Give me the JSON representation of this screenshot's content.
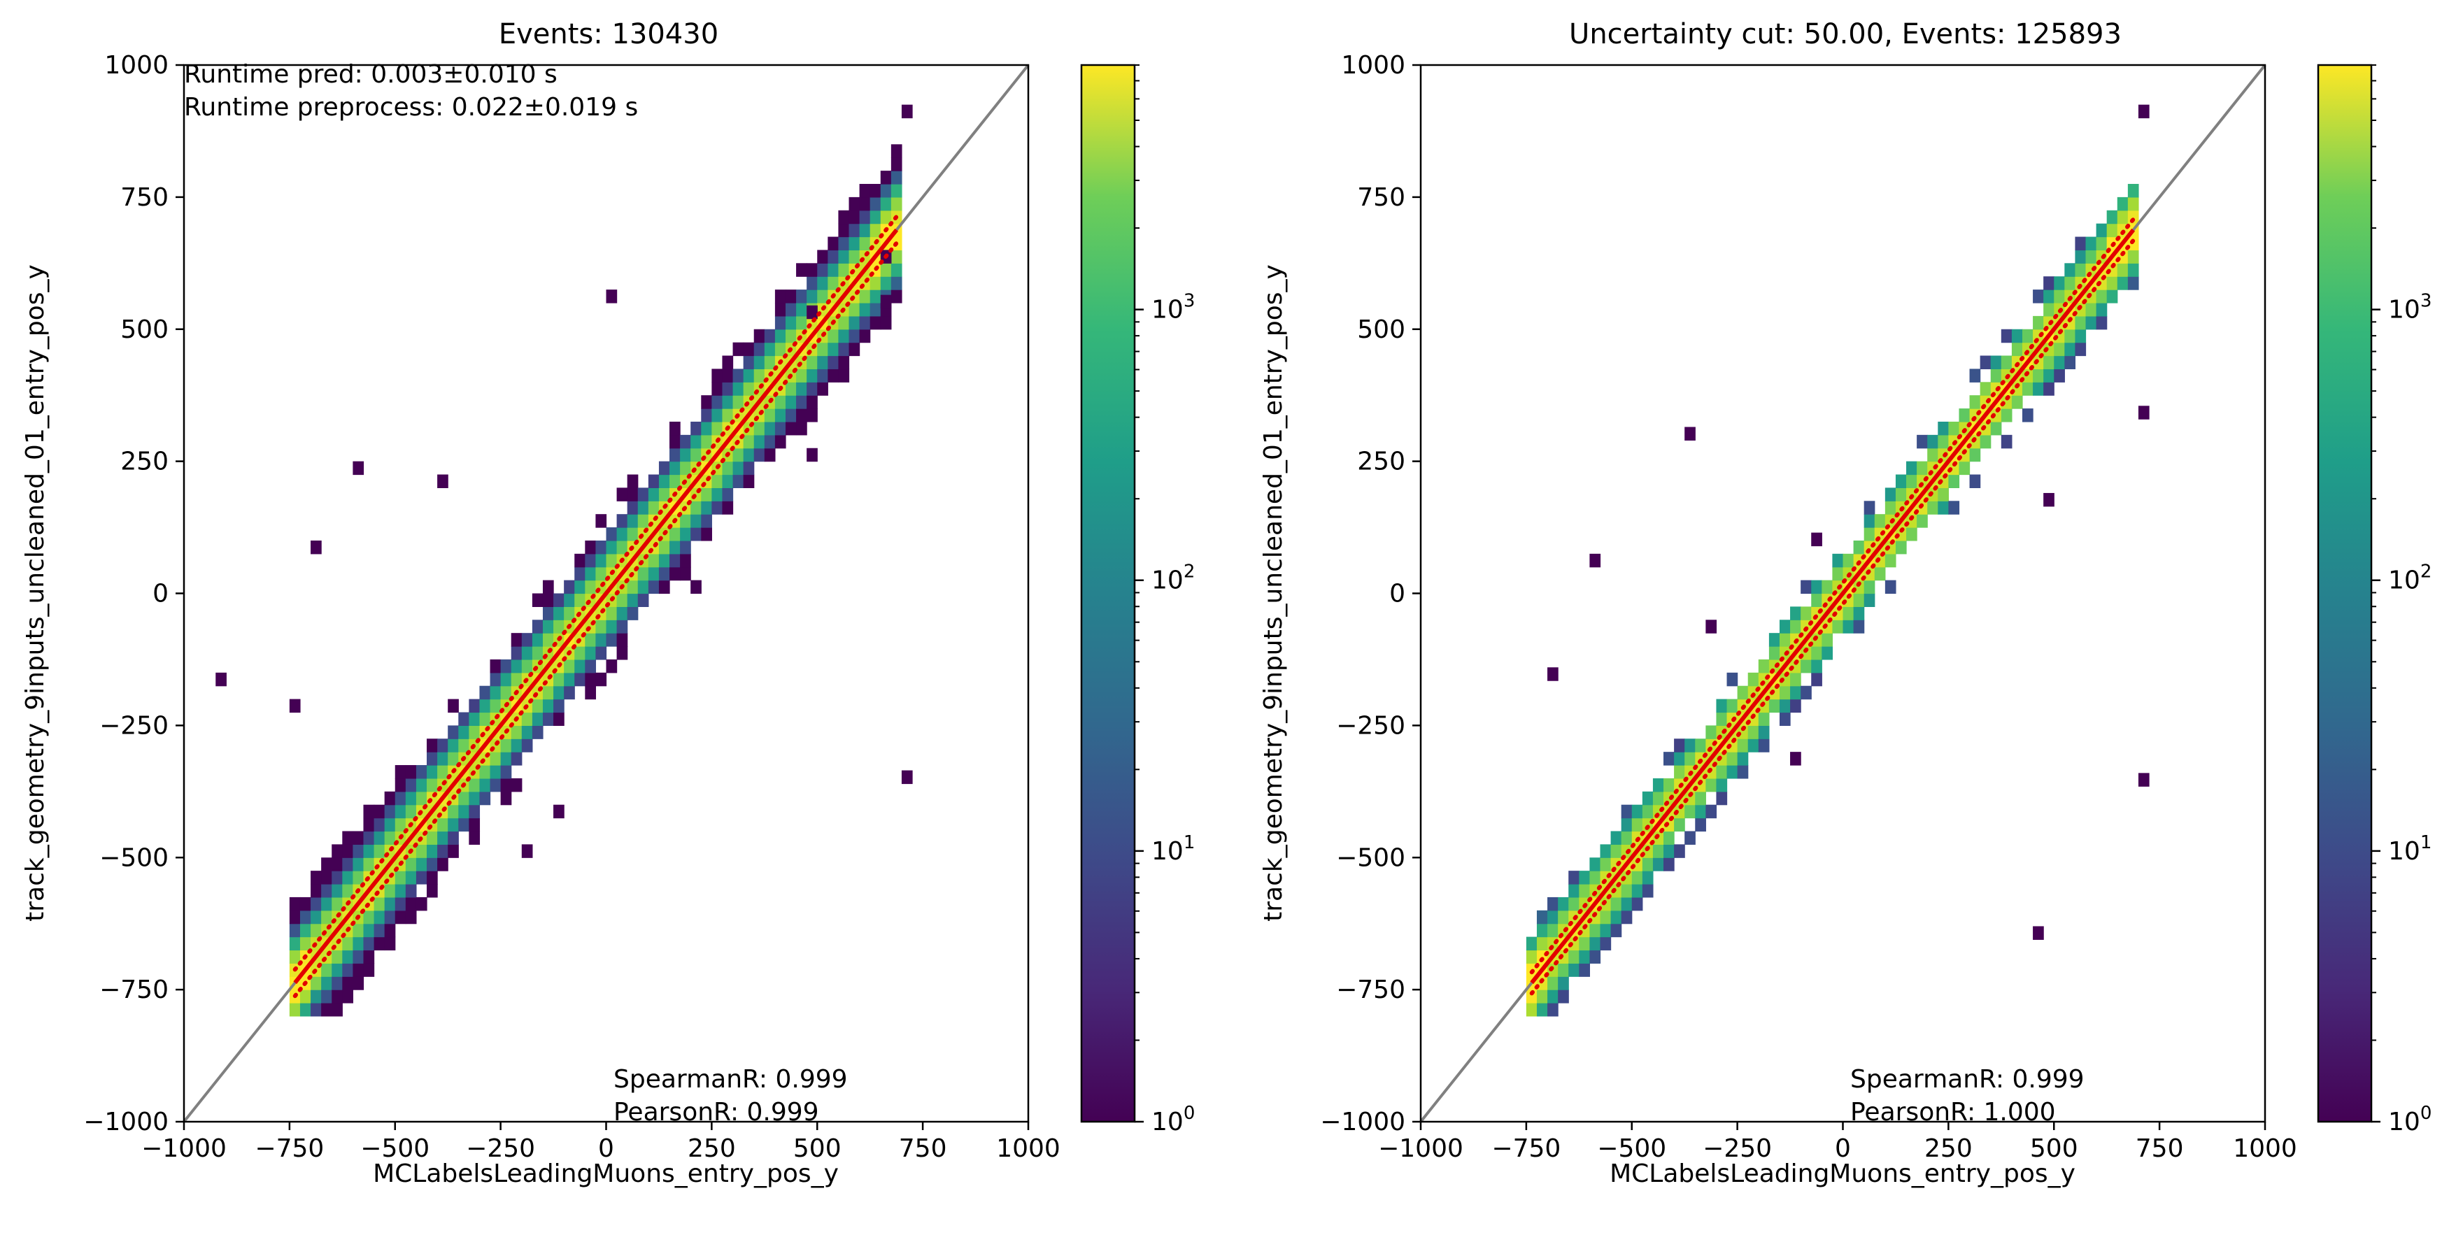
{
  "chart_data": [
    {
      "type": "heatmap",
      "title": "Events: 130430",
      "xlabel": "MCLabelsLeadingMuons_entry_pos_y",
      "ylabel": "track_geometry_9inputs_uncleaned_01_entry_pos_y",
      "xlim": [
        -1000,
        1000
      ],
      "ylim": [
        -1000,
        1000
      ],
      "xticks": [
        "−1000",
        "−750",
        "−500",
        "−250",
        "0",
        "250",
        "500",
        "750",
        "1000"
      ],
      "yticks": [
        "−1000",
        "−750",
        "−500",
        "−250",
        "0",
        "250",
        "500",
        "750",
        "1000"
      ],
      "xtick_values": [
        -1000,
        -750,
        -500,
        -250,
        0,
        250,
        500,
        750,
        1000
      ],
      "ytick_values": [
        -1000,
        -750,
        -500,
        -250,
        0,
        250,
        500,
        750,
        1000
      ],
      "colorbar": {
        "scale": "log",
        "range": [
          1,
          8000
        ],
        "cmap": "viridis",
        "ticks": [
          "10",
          "10",
          "10",
          "10"
        ],
        "tick_exponents": [
          "0",
          "1",
          "2",
          "3"
        ],
        "tick_values": [
          1,
          10,
          100,
          1000
        ]
      },
      "annotations": [
        "Runtime pred: 0.003±0.010 s",
        "Runtime preprocess: 0.022±0.019 s"
      ],
      "stats": [
        "SpearmanR: 0.999",
        "PearsonR: 0.999"
      ],
      "bin_width": 25,
      "diagonal_spread": 6,
      "outlier_bins": [
        [
          -400,
          200
        ],
        [
          -600,
          225
        ],
        [
          -700,
          75
        ],
        [
          -750,
          -225
        ],
        [
          -925,
          -175
        ],
        [
          0,
          550
        ],
        [
          200,
          0
        ],
        [
          475,
          250
        ],
        [
          475,
          520
        ],
        [
          650,
          625
        ],
        [
          650,
          540
        ],
        [
          700,
          -360
        ],
        [
          700,
          900
        ],
        [
          -200,
          -500
        ],
        [
          -125,
          -425
        ]
      ],
      "lines": [
        {
          "name": "",
          "role": "identity",
          "color": "#808080",
          "x": [
            -1000,
            1000
          ],
          "y": [
            -1000,
            1000
          ]
        },
        {
          "name": "",
          "role": "median",
          "color": "#e30000",
          "x": [
            -737,
            688
          ],
          "y": [
            -737,
            688
          ]
        },
        {
          "name": "",
          "role": "quantile",
          "color": "#e30000",
          "style": "dotted",
          "x": [
            -737,
            688
          ],
          "y": [
            -762,
            663
          ]
        },
        {
          "name": "",
          "role": "quantile",
          "color": "#e30000",
          "style": "dotted",
          "x": [
            -737,
            688
          ],
          "y": [
            -712,
            713
          ]
        }
      ]
    },
    {
      "type": "heatmap",
      "title": "Uncertainty cut: 50.00, Events: 125893",
      "xlabel": "MCLabelsLeadingMuons_entry_pos_y",
      "ylabel": "track_geometry_9inputs_uncleaned_01_entry_pos_y",
      "xlim": [
        -1000,
        1000
      ],
      "ylim": [
        -1000,
        1000
      ],
      "xticks": [
        "−1000",
        "−750",
        "−500",
        "−250",
        "0",
        "250",
        "500",
        "750",
        "1000"
      ],
      "yticks": [
        "−1000",
        "−750",
        "−500",
        "−250",
        "0",
        "250",
        "500",
        "750",
        "1000"
      ],
      "xtick_values": [
        -1000,
        -750,
        -500,
        -250,
        0,
        250,
        500,
        750,
        1000
      ],
      "ytick_values": [
        -1000,
        -750,
        -500,
        -250,
        0,
        250,
        500,
        750,
        1000
      ],
      "colorbar": {
        "scale": "log",
        "range": [
          1,
          8000
        ],
        "cmap": "viridis",
        "ticks": [
          "10",
          "10",
          "10",
          "10"
        ],
        "tick_exponents": [
          "0",
          "1",
          "2",
          "3"
        ],
        "tick_values": [
          1,
          10,
          100,
          1000
        ]
      },
      "annotations": [],
      "stats": [
        "SpearmanR: 0.999",
        "PearsonR: 1.000"
      ],
      "bin_width": 25,
      "diagonal_spread": 4,
      "outlier_bins": [
        [
          -600,
          50
        ],
        [
          -700,
          -165
        ],
        [
          -375,
          290
        ],
        [
          -325,
          -75
        ],
        [
          -125,
          -325
        ],
        [
          -75,
          90
        ],
        [
          475,
          165
        ],
        [
          700,
          330
        ],
        [
          700,
          -365
        ],
        [
          450,
          -655
        ],
        [
          700,
          900
        ]
      ],
      "lines": [
        {
          "name": "",
          "role": "identity",
          "color": "#808080",
          "x": [
            -1000,
            1000
          ],
          "y": [
            -1000,
            1000
          ]
        },
        {
          "name": "",
          "role": "median",
          "color": "#e30000",
          "x": [
            -737,
            688
          ],
          "y": [
            -737,
            688
          ]
        },
        {
          "name": "",
          "role": "quantile",
          "color": "#e30000",
          "style": "dotted",
          "x": [
            -737,
            688
          ],
          "y": [
            -757,
            668
          ]
        },
        {
          "name": "",
          "role": "quantile",
          "color": "#e30000",
          "style": "dotted",
          "x": [
            -737,
            688
          ],
          "y": [
            -717,
            708
          ]
        }
      ]
    }
  ]
}
